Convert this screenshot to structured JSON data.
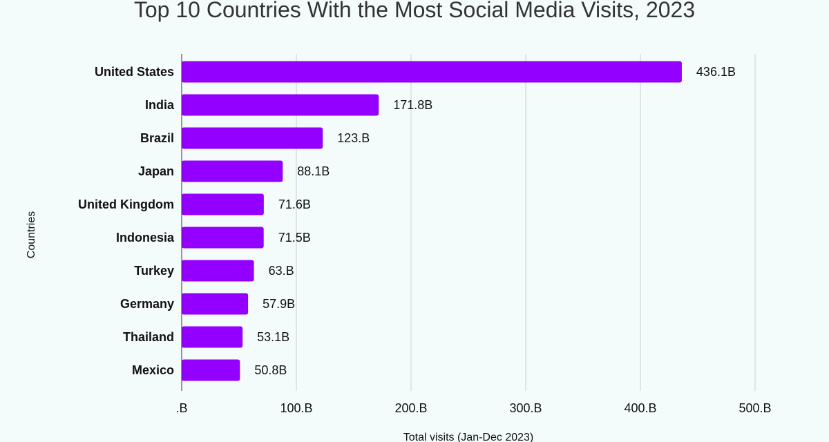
{
  "chart_data": {
    "type": "bar",
    "orientation": "horizontal",
    "title": "Top 10 Countries With the Most Social Media Visits, 2023",
    "xlabel": "Total visits (Jan-Dec 2023)",
    "ylabel": "Countries",
    "categories": [
      "United States",
      "India",
      "Brazil",
      "Japan",
      "United Kingdom",
      "Indonesia",
      "Turkey",
      "Germany",
      "Thailand",
      "Mexico"
    ],
    "values": [
      436.1,
      171.8,
      123.0,
      88.1,
      71.6,
      71.5,
      63.0,
      57.9,
      53.1,
      50.8
    ],
    "value_labels": [
      "436.1B",
      "171.8B",
      "123.B",
      "88.1B",
      "71.6B",
      "71.5B",
      "63.B",
      "57.9B",
      "53.1B",
      "50.8B"
    ],
    "xlim": [
      0,
      500
    ],
    "x_ticks": [
      0,
      100,
      200,
      300,
      400,
      500
    ],
    "x_tick_labels": [
      ".B",
      "100.B",
      "200.B",
      "300.B",
      "400.B",
      "500.B"
    ],
    "grid": true,
    "bar_color": "#9400ff",
    "grid_color": "#cccccc"
  }
}
